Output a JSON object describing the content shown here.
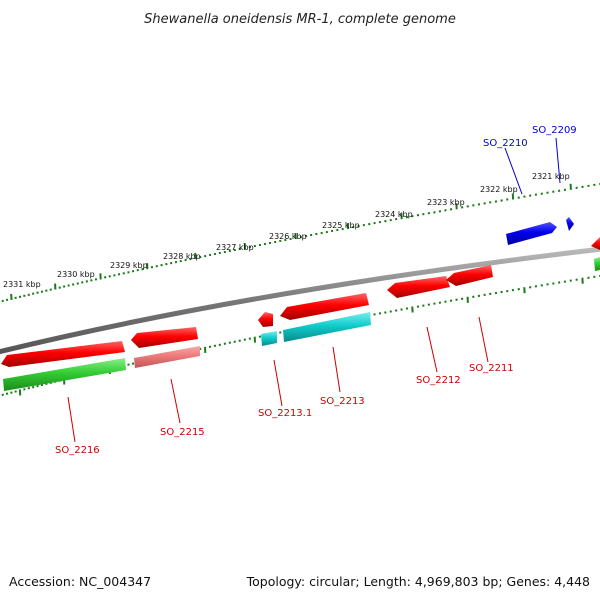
{
  "title": "Shewanella oneidensis MR-1, complete genome",
  "footer": {
    "accession": "Accession: NC_004347",
    "topology": "Topology: circular; Length: 4,969,803 bp; Genes: 4,448"
  },
  "scale": {
    "unit": "kbp",
    "labels": [
      "2331 kbp",
      "2330 kbp",
      "2329 kbp",
      "2328 kbp",
      "2327 kbp",
      "2326 kbp",
      "2325 kbp",
      "2324 kbp",
      "2323 kbp",
      "2322 kbp",
      "2321 kbp"
    ]
  },
  "genes": [
    {
      "id": "SO_2209",
      "color": "#0000cc"
    },
    {
      "id": "SO_2210",
      "color": "#0000cc"
    },
    {
      "id": "SO_2211",
      "color": "#cc0000"
    },
    {
      "id": "SO_2212",
      "color": "#cc0000"
    },
    {
      "id": "SO_2213",
      "color": "#cc0000"
    },
    {
      "id": "SO_2213.1",
      "color": "#cc0000"
    },
    {
      "id": "SO_2215",
      "color": "#cc0000"
    },
    {
      "id": "SO_2216",
      "color": "#cc0000"
    }
  ],
  "colors": {
    "backbone": "#777777",
    "scale_ticks": "#1a7a1a",
    "forward_cds": "#ff0000",
    "forward_cds_light": "#f08080",
    "reverse_cds": "#0000ee",
    "gene_green": "#33cc33",
    "gene_cyan": "#11cccc"
  }
}
